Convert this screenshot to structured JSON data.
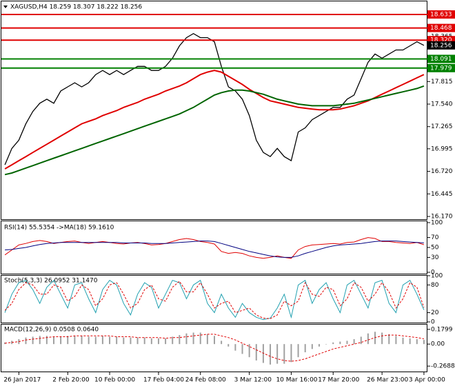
{
  "chart_data": [
    {
      "type": "line",
      "title": "XAGUSD,H4  18.259 18.307 18.222 18.256",
      "categories": [
        null,
        null,
        "26 Jan 2017",
        null,
        null,
        null,
        null,
        null,
        null,
        "2 Feb 20:00",
        null,
        null,
        null,
        null,
        null,
        "10 Feb 00:00",
        null,
        null,
        null,
        null,
        null,
        null,
        "17 Feb 04:00",
        null,
        null,
        null,
        null,
        null,
        "24 Feb 08:00",
        null,
        null,
        null,
        null,
        null,
        null,
        "3 Mar 12:00",
        null,
        null,
        null,
        null,
        null,
        "10 Mar 16:00",
        null,
        null,
        null,
        null,
        null,
        "17 Mar 20:00",
        null,
        null,
        null,
        null,
        null,
        null,
        "26 Mar 23:00",
        null,
        null,
        null,
        null,
        null,
        "3 Apr 00:00"
      ],
      "series": [
        {
          "color": "#000000",
          "values": [
            16.8,
            17.0,
            17.1,
            17.3,
            17.45,
            17.55,
            17.6,
            17.55,
            17.7,
            17.75,
            17.8,
            17.75,
            17.8,
            17.9,
            17.95,
            17.9,
            17.95,
            17.9,
            17.95,
            18.0,
            18.0,
            17.95,
            17.95,
            18.0,
            18.1,
            18.25,
            18.35,
            18.4,
            18.35,
            18.35,
            18.3,
            18.0,
            17.75,
            17.7,
            17.6,
            17.4,
            17.1,
            16.95,
            16.9,
            17.0,
            16.9,
            16.85,
            17.2,
            17.25,
            17.35,
            17.4,
            17.45,
            17.5,
            17.5,
            17.6,
            17.65,
            17.85,
            18.05,
            18.15,
            18.1,
            18.15,
            18.2,
            18.2,
            18.25,
            18.3,
            18.256
          ]
        },
        {
          "color": "#e00000",
          "values": [
            16.75,
            16.8,
            16.85,
            16.9,
            16.95,
            17.0,
            17.05,
            17.1,
            17.15,
            17.2,
            17.25,
            17.3,
            17.33,
            17.36,
            17.4,
            17.43,
            17.46,
            17.5,
            17.53,
            17.56,
            17.6,
            17.63,
            17.66,
            17.7,
            17.73,
            17.76,
            17.8,
            17.85,
            17.9,
            17.93,
            17.95,
            17.93,
            17.88,
            17.83,
            17.78,
            17.72,
            17.67,
            17.62,
            17.58,
            17.56,
            17.54,
            17.52,
            17.5,
            17.49,
            17.48,
            17.47,
            17.47,
            17.47,
            17.48,
            17.5,
            17.52,
            17.55,
            17.58,
            17.62,
            17.66,
            17.7,
            17.74,
            17.78,
            17.82,
            17.86,
            17.9
          ]
        },
        {
          "color": "#006400",
          "values": [
            16.68,
            16.7,
            16.73,
            16.76,
            16.79,
            16.82,
            16.85,
            16.88,
            16.91,
            16.94,
            16.97,
            17.0,
            17.03,
            17.06,
            17.09,
            17.12,
            17.15,
            17.18,
            17.21,
            17.24,
            17.27,
            17.3,
            17.33,
            17.36,
            17.39,
            17.42,
            17.46,
            17.5,
            17.55,
            17.6,
            17.65,
            17.68,
            17.7,
            17.71,
            17.71,
            17.7,
            17.68,
            17.66,
            17.63,
            17.6,
            17.58,
            17.56,
            17.54,
            17.53,
            17.52,
            17.52,
            17.52,
            17.52,
            17.53,
            17.54,
            17.55,
            17.57,
            17.59,
            17.61,
            17.63,
            17.65,
            17.67,
            17.69,
            17.71,
            17.73,
            17.76
          ]
        }
      ],
      "ylim": [
        16.145,
        18.784
      ],
      "yticks": [
        {
          "value": 16.17,
          "label": "16.170"
        },
        16.445,
        {
          "value": 16.72,
          "label": "16.720"
        },
        16.995,
        17.265,
        {
          "value": 17.54,
          "label": "17.540"
        },
        17.815,
        18.365
      ],
      "levels": [
        {
          "value": 18.633,
          "color": "#e00000"
        },
        {
          "value": 18.468,
          "color": "#e00000"
        },
        {
          "value": 18.32,
          "label": "18.320",
          "color": "#e00000"
        },
        {
          "value": 18.091,
          "color": "#008000"
        },
        {
          "value": 17.979,
          "color": "#008000"
        }
      ]
    },
    {
      "type": "line",
      "title": "RSI(14) 55.5354 ->MA(18) 59.1610",
      "series": [
        {
          "color": "#e00000",
          "values": [
            35,
            45,
            55,
            58,
            62,
            64,
            62,
            58,
            60,
            62,
            63,
            60,
            58,
            60,
            62,
            60,
            58,
            57,
            59,
            60,
            58,
            55,
            56,
            58,
            62,
            66,
            68,
            66,
            62,
            60,
            57,
            42,
            38,
            40,
            38,
            33,
            30,
            28,
            30,
            33,
            30,
            28,
            45,
            52,
            55,
            56,
            57,
            58,
            57,
            60,
            61,
            66,
            70,
            68,
            62,
            62,
            60,
            59,
            58,
            60,
            55.5354
          ]
        },
        {
          "color": "#000080",
          "values": [
            45,
            46,
            48,
            50,
            53,
            56,
            58,
            59,
            60,
            60,
            60,
            60,
            60,
            60,
            60,
            60,
            60,
            59,
            59,
            59,
            59,
            58,
            58,
            58,
            59,
            60,
            61,
            62,
            63,
            63,
            62,
            58,
            54,
            50,
            46,
            42,
            39,
            36,
            33,
            31,
            30,
            30,
            33,
            38,
            42,
            46,
            50,
            53,
            55,
            56,
            57,
            58,
            60,
            62,
            63,
            63,
            63,
            62,
            61,
            60,
            59.161
          ]
        }
      ],
      "ylim": [
        0,
        100
      ],
      "yticks": [
        100,
        70,
        50,
        30,
        0
      ]
    },
    {
      "type": "line",
      "title": "Stoch(5,3,3) 26.0952 31.1470",
      "series": [
        {
          "color": "#20a0b0",
          "values": [
            20,
            60,
            85,
            90,
            70,
            40,
            75,
            90,
            60,
            30,
            80,
            85,
            50,
            20,
            70,
            90,
            80,
            40,
            15,
            60,
            85,
            75,
            30,
            60,
            90,
            85,
            50,
            80,
            90,
            40,
            20,
            60,
            30,
            10,
            40,
            20,
            10,
            5,
            8,
            30,
            60,
            10,
            80,
            90,
            40,
            70,
            85,
            50,
            20,
            80,
            90,
            60,
            30,
            85,
            90,
            40,
            20,
            80,
            90,
            60,
            26.0952
          ]
        },
        {
          "color": "#e00000",
          "style": "dashed",
          "values": [
            25,
            40,
            70,
            85,
            80,
            60,
            60,
            80,
            75,
            45,
            55,
            80,
            70,
            35,
            50,
            80,
            85,
            60,
            30,
            40,
            70,
            80,
            50,
            45,
            75,
            88,
            65,
            65,
            85,
            60,
            30,
            40,
            45,
            20,
            25,
            30,
            15,
            8,
            7,
            15,
            45,
            35,
            45,
            85,
            60,
            55,
            75,
            70,
            35,
            50,
            85,
            75,
            45,
            60,
            85,
            65,
            30,
            50,
            85,
            75,
            31.147
          ]
        }
      ],
      "ylim": [
        0,
        100
      ],
      "yticks": [
        100,
        80,
        20,
        0
      ]
    },
    {
      "type": "bar",
      "title": "MACD(12,26,9) 0.0508 0.0640",
      "series": [
        {
          "color": "#a0a0a0",
          "values": [
            0.02,
            0.04,
            0.06,
            0.08,
            0.09,
            0.1,
            0.1,
            0.09,
            0.09,
            0.1,
            0.1,
            0.1,
            0.09,
            0.09,
            0.1,
            0.09,
            0.09,
            0.08,
            0.08,
            0.08,
            0.08,
            0.07,
            0.07,
            0.07,
            0.09,
            0.11,
            0.13,
            0.14,
            0.14,
            0.12,
            0.1,
            0.04,
            -0.03,
            -0.08,
            -0.12,
            -0.16,
            -0.2,
            -0.23,
            -0.25,
            -0.24,
            -0.24,
            -0.22,
            -0.16,
            -0.1,
            -0.06,
            -0.03,
            0,
            0.02,
            0.03,
            0.04,
            0.06,
            0.09,
            0.13,
            0.15,
            0.14,
            0.12,
            0.1,
            0.08,
            0.07,
            0.06,
            0.0508
          ]
        },
        {
          "color": "#e00000",
          "style": "dashed",
          "values": [
            0.01,
            0.02,
            0.03,
            0.05,
            0.06,
            0.07,
            0.08,
            0.09,
            0.09,
            0.09,
            0.1,
            0.1,
            0.1,
            0.1,
            0.1,
            0.1,
            0.09,
            0.09,
            0.09,
            0.08,
            0.08,
            0.08,
            0.08,
            0.07,
            0.08,
            0.08,
            0.09,
            0.1,
            0.11,
            0.12,
            0.12,
            0.1,
            0.08,
            0.05,
            0.01,
            -0.03,
            -0.07,
            -0.11,
            -0.15,
            -0.18,
            -0.2,
            -0.21,
            -0.2,
            -0.18,
            -0.15,
            -0.12,
            -0.09,
            -0.06,
            -0.04,
            -0.02,
            0,
            0.02,
            0.05,
            0.08,
            0.1,
            0.11,
            0.11,
            0.1,
            0.09,
            0.08,
            0.064
          ]
        }
      ],
      "ylim": [
        -0.335,
        0.237
      ],
      "yticks": [
        0.1799,
        {
          "value": 0,
          "label": "0.00"
        },
        -0.2688
      ]
    }
  ]
}
